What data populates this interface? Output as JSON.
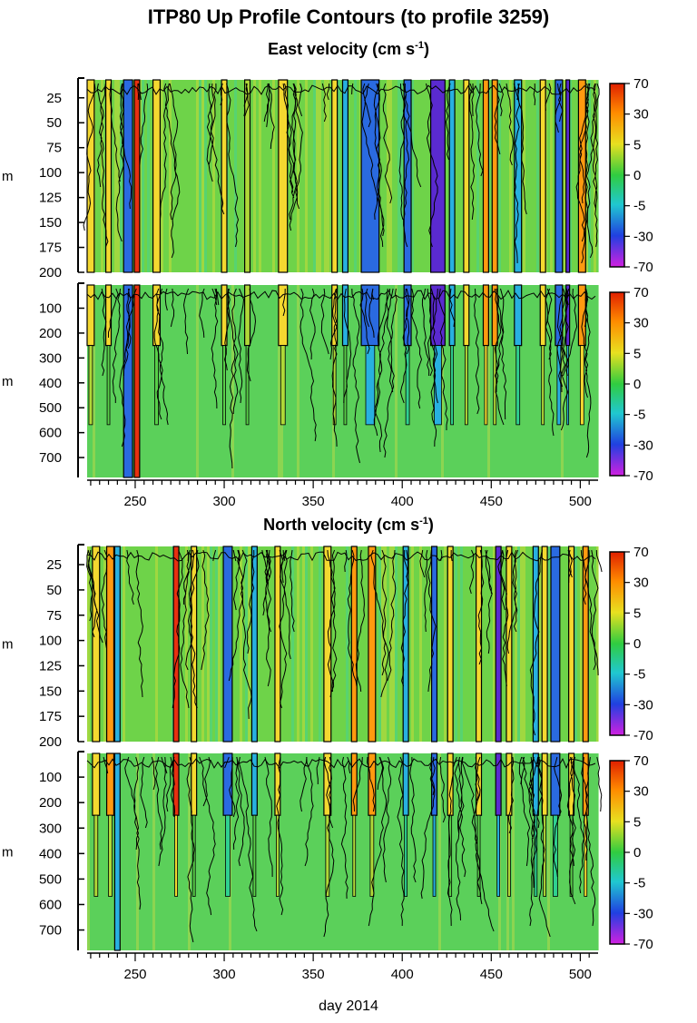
{
  "title": "ITP80 Up Profile Contours (to profile 3259)",
  "east_title": "East velocity (cm s",
  "north_title": "North velocity (cm s",
  "sup": "-1",
  "close_paren": ")",
  "chart_data": [
    {
      "type": "heatmap",
      "title": "East velocity (cm s-1) 0-200 m",
      "variable": "east",
      "xlabel": "day 2014",
      "ylabel": "m",
      "xlim": [
        223,
        510
      ],
      "ylim": [
        7,
        200
      ],
      "xticks": [
        250,
        300,
        350,
        400,
        450,
        500
      ],
      "yticks": [
        25,
        50,
        75,
        100,
        125,
        150,
        175,
        200
      ],
      "colorbar_ticks": [
        "70",
        "30",
        "5",
        "0",
        "-5",
        "-30",
        "-70"
      ]
    },
    {
      "type": "heatmap",
      "title": "East velocity (cm s-1) 0-780 m",
      "variable": "east",
      "xlabel": "day 2014",
      "ylabel": "m",
      "xlim": [
        223,
        510
      ],
      "ylim": [
        7,
        780
      ],
      "xticks": [
        250,
        300,
        350,
        400,
        450,
        500
      ],
      "yticks": [
        100,
        200,
        300,
        400,
        500,
        600,
        700
      ],
      "colorbar_ticks": [
        "70",
        "30",
        "5",
        "0",
        "-5",
        "-30",
        "-70"
      ]
    },
    {
      "type": "heatmap",
      "title": "North velocity (cm s-1) 0-200 m",
      "variable": "north",
      "xlabel": "day 2014",
      "ylabel": "m",
      "xlim": [
        223,
        510
      ],
      "ylim": [
        7,
        200
      ],
      "xticks": [
        250,
        300,
        350,
        400,
        450,
        500
      ],
      "yticks": [
        25,
        50,
        75,
        100,
        125,
        150,
        175,
        200
      ],
      "colorbar_ticks": [
        "70",
        "30",
        "5",
        "0",
        "-5",
        "-30",
        "-70"
      ]
    },
    {
      "type": "heatmap",
      "title": "North velocity (cm s-1) 0-780 m",
      "variable": "north",
      "xlabel": "day 2014",
      "ylabel": "m",
      "xlim": [
        223,
        510
      ],
      "ylim": [
        7,
        780
      ],
      "xticks": [
        250,
        300,
        350,
        400,
        450,
        500
      ],
      "yticks": [
        100,
        200,
        300,
        400,
        500,
        600,
        700
      ],
      "colorbar_ticks": [
        "70",
        "30",
        "5",
        "0",
        "-5",
        "-30",
        "-70"
      ]
    }
  ],
  "bands": {
    "east": [
      {
        "day": 225,
        "w": 4,
        "v": 8,
        "deep": false
      },
      {
        "day": 235,
        "w": 3,
        "v": 5,
        "deep": false
      },
      {
        "day": 246,
        "w": 5,
        "v": -12,
        "deep": true
      },
      {
        "day": 251,
        "w": 3,
        "v": 35,
        "deep": true
      },
      {
        "day": 262,
        "w": 4,
        "v": 6,
        "deep": false
      },
      {
        "day": 300,
        "w": 3,
        "v": 6,
        "deep": false
      },
      {
        "day": 313,
        "w": 3,
        "v": 4,
        "deep": false
      },
      {
        "day": 333,
        "w": 5,
        "v": 10,
        "deep": false
      },
      {
        "day": 362,
        "w": 3,
        "v": 9,
        "deep": false
      },
      {
        "day": 368,
        "w": 3,
        "v": -5,
        "deep": false
      },
      {
        "day": 382,
        "w": 10,
        "v": -25,
        "deep": false
      },
      {
        "day": 403,
        "w": 4,
        "v": -14,
        "deep": false
      },
      {
        "day": 420,
        "w": 8,
        "v": -35,
        "deep": false
      },
      {
        "day": 428,
        "w": 3,
        "v": -8,
        "deep": false
      },
      {
        "day": 436,
        "w": 3,
        "v": 8,
        "deep": false
      },
      {
        "day": 447,
        "w": 3,
        "v": 20,
        "deep": false
      },
      {
        "day": 452,
        "w": 3,
        "v": 12,
        "deep": false
      },
      {
        "day": 465,
        "w": 4,
        "v": -8,
        "deep": false
      },
      {
        "day": 479,
        "w": 3,
        "v": 8,
        "deep": false
      },
      {
        "day": 488,
        "w": 4,
        "v": -25,
        "deep": false
      },
      {
        "day": 493,
        "w": 2,
        "v": -40,
        "deep": false
      },
      {
        "day": 501,
        "w": 4,
        "v": 20,
        "deep": false
      }
    ],
    "north": [
      {
        "day": 228,
        "w": 4,
        "v": 10,
        "deep": false
      },
      {
        "day": 236,
        "w": 4,
        "v": 12,
        "deep": false
      },
      {
        "day": 240,
        "w": 3,
        "v": -8,
        "deep": true
      },
      {
        "day": 273,
        "w": 3,
        "v": 35,
        "deep": false
      },
      {
        "day": 283,
        "w": 3,
        "v": 6,
        "deep": false
      },
      {
        "day": 302,
        "w": 5,
        "v": -15,
        "deep": false
      },
      {
        "day": 317,
        "w": 3,
        "v": -5,
        "deep": false
      },
      {
        "day": 330,
        "w": 3,
        "v": 10,
        "deep": false
      },
      {
        "day": 358,
        "w": 4,
        "v": 8,
        "deep": false
      },
      {
        "day": 373,
        "w": 3,
        "v": 12,
        "deep": false
      },
      {
        "day": 383,
        "w": 4,
        "v": 12,
        "deep": false
      },
      {
        "day": 402,
        "w": 3,
        "v": -10,
        "deep": false
      },
      {
        "day": 418,
        "w": 3,
        "v": -20,
        "deep": false
      },
      {
        "day": 427,
        "w": 3,
        "v": 6,
        "deep": false
      },
      {
        "day": 443,
        "w": 3,
        "v": 6,
        "deep": false
      },
      {
        "day": 454,
        "w": 3,
        "v": -40,
        "deep": false
      },
      {
        "day": 460,
        "w": 3,
        "v": 10,
        "deep": false
      },
      {
        "day": 475,
        "w": 3,
        "v": -10,
        "deep": false
      },
      {
        "day": 480,
        "w": 3,
        "v": 10,
        "deep": false
      },
      {
        "day": 486,
        "w": 5,
        "v": -18,
        "deep": false
      },
      {
        "day": 495,
        "w": 3,
        "v": 6,
        "deep": false
      },
      {
        "day": 503,
        "w": 3,
        "v": 25,
        "deep": false
      }
    ]
  }
}
